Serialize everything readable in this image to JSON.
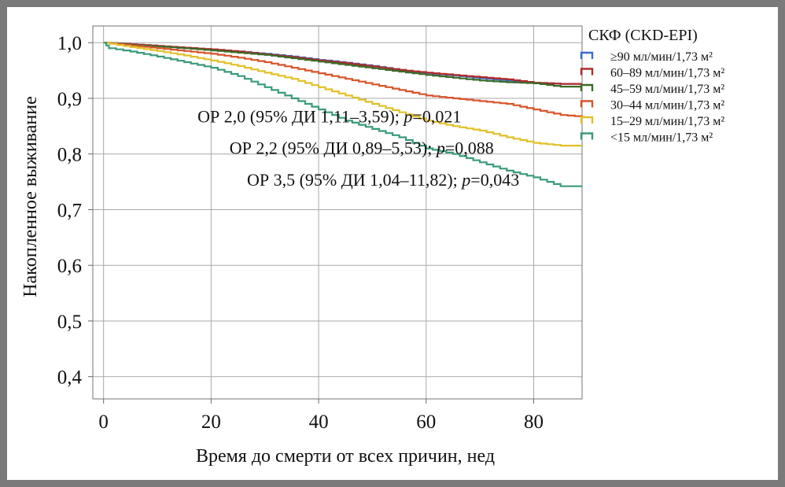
{
  "chart_data": {
    "type": "line",
    "step": true,
    "xlabel": "Время до смерти от всех причин, нед",
    "ylabel": "Накопленное выживание",
    "xlim": [
      -2,
      89
    ],
    "ylim": [
      0.36,
      1.03
    ],
    "xticks": [
      0,
      20,
      40,
      60,
      80
    ],
    "xtick_labels": [
      "0",
      "20",
      "40",
      "60",
      "80"
    ],
    "yticks": [
      0.4,
      0.5,
      0.6,
      0.7,
      0.8,
      0.9,
      1.0
    ],
    "ytick_labels": [
      "0,4",
      "0,5",
      "0,6",
      "0,7",
      "0,8",
      "0,9",
      "1,0"
    ],
    "grid": true,
    "legend": {
      "title": "СКФ (CKD-EPI)",
      "position": "top-right outside"
    },
    "series": [
      {
        "name": "≥90 мл/мин/1,73 м²",
        "color": "#3a6fc8",
        "x": [
          0,
          5,
          10,
          15,
          20,
          25,
          30,
          35,
          40,
          45,
          50,
          55,
          60,
          65,
          70,
          75,
          80,
          85,
          89
        ],
        "y": [
          1.0,
          0.997,
          0.994,
          0.99,
          0.987,
          0.984,
          0.98,
          0.975,
          0.969,
          0.964,
          0.958,
          0.951,
          0.945,
          0.941,
          0.936,
          0.932,
          0.928,
          0.926,
          0.926
        ]
      },
      {
        "name": "60–89 мл/мин/1,73 м²",
        "color": "#b22a2a",
        "x": [
          0,
          5,
          10,
          15,
          20,
          25,
          30,
          35,
          40,
          45,
          50,
          55,
          60,
          65,
          70,
          75,
          80,
          85,
          89
        ],
        "y": [
          1.0,
          0.997,
          0.994,
          0.991,
          0.988,
          0.984,
          0.979,
          0.974,
          0.968,
          0.963,
          0.957,
          0.951,
          0.946,
          0.942,
          0.938,
          0.934,
          0.928,
          0.926,
          0.926
        ]
      },
      {
        "name": "45–59 мл/мин/1,73 м²",
        "color": "#3a6b28",
        "x": [
          0,
          5,
          10,
          15,
          20,
          25,
          30,
          35,
          40,
          45,
          50,
          55,
          60,
          65,
          70,
          75,
          80,
          85,
          89
        ],
        "y": [
          1.0,
          0.996,
          0.993,
          0.99,
          0.986,
          0.982,
          0.978,
          0.972,
          0.966,
          0.96,
          0.954,
          0.948,
          0.942,
          0.937,
          0.932,
          0.929,
          0.927,
          0.921,
          0.921
        ]
      },
      {
        "name": "30–44 мл/мин/1,73 м²",
        "color": "#d9542a",
        "x": [
          0,
          5,
          10,
          15,
          20,
          25,
          30,
          35,
          40,
          45,
          50,
          55,
          60,
          65,
          70,
          75,
          80,
          85,
          89
        ],
        "y": [
          1.0,
          0.995,
          0.99,
          0.985,
          0.98,
          0.973,
          0.965,
          0.955,
          0.945,
          0.935,
          0.925,
          0.915,
          0.905,
          0.9,
          0.895,
          0.89,
          0.88,
          0.87,
          0.867
        ]
      },
      {
        "name": "15–29 мл/мин/1,73 м²",
        "color": "#e2c029",
        "x": [
          0,
          5,
          10,
          15,
          20,
          25,
          30,
          35,
          40,
          45,
          50,
          55,
          60,
          65,
          70,
          75,
          80,
          85,
          89
        ],
        "y": [
          1.0,
          0.992,
          0.985,
          0.977,
          0.968,
          0.958,
          0.946,
          0.935,
          0.92,
          0.905,
          0.89,
          0.875,
          0.86,
          0.85,
          0.842,
          0.83,
          0.82,
          0.815,
          0.815
        ]
      },
      {
        "name": "<15 мл/мин/1,73 м²",
        "color": "#3a9a7a",
        "x": [
          0,
          1,
          5,
          10,
          15,
          20,
          25,
          30,
          35,
          40,
          45,
          50,
          55,
          60,
          65,
          70,
          75,
          80,
          85,
          89
        ],
        "y": [
          1.0,
          0.99,
          0.984,
          0.975,
          0.965,
          0.955,
          0.94,
          0.92,
          0.9,
          0.88,
          0.86,
          0.845,
          0.83,
          0.81,
          0.8,
          0.785,
          0.77,
          0.758,
          0.742,
          0.742
        ]
      }
    ],
    "annotations": [
      {
        "prefix": "ОР 2,0 (95% ДИ 1,11–3,59); ",
        "italic": "p",
        "suffix": "=0,021",
        "x": 42,
        "y": 0.857
      },
      {
        "prefix": "ОР 2,2 (95% ДИ 0,89–5,53); ",
        "italic": "p",
        "suffix": "=0,088",
        "x": 48,
        "y": 0.8
      },
      {
        "prefix": "ОР 3,5 (95% ДИ 1,04–11,82); ",
        "italic": "p",
        "suffix": "=0,043",
        "x": 52,
        "y": 0.743
      }
    ]
  }
}
